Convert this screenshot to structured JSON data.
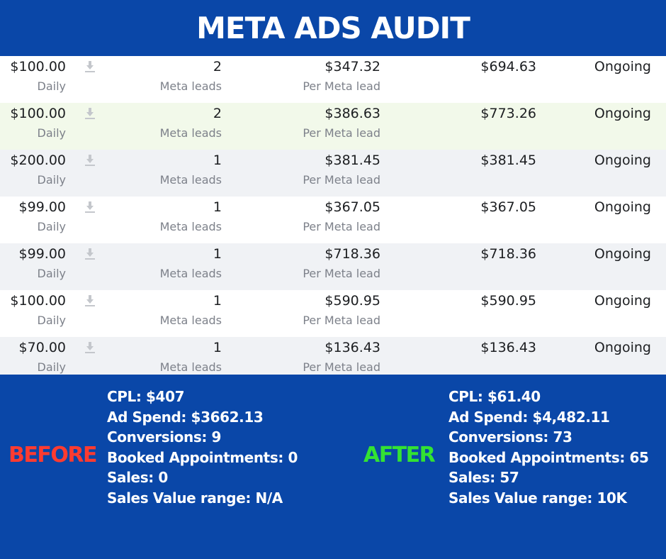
{
  "title": "META ADS AUDIT",
  "rows": [
    {
      "budget": "$100.00",
      "budget_type": "Daily",
      "results": "2",
      "results_label": "Meta leads",
      "cost": "$347.32",
      "cost_label": "Per Meta lead",
      "spent": "$694.63",
      "status": "Ongoing"
    },
    {
      "budget": "$100.00",
      "budget_type": "Daily",
      "results": "2",
      "results_label": "Meta leads",
      "cost": "$386.63",
      "cost_label": "Per Meta lead",
      "spent": "$773.26",
      "status": "Ongoing"
    },
    {
      "budget": "$200.00",
      "budget_type": "Daily",
      "results": "1",
      "results_label": "Meta leads",
      "cost": "$381.45",
      "cost_label": "Per Meta lead",
      "spent": "$381.45",
      "status": "Ongoing"
    },
    {
      "budget": "$99.00",
      "budget_type": "Daily",
      "results": "1",
      "results_label": "Meta leads",
      "cost": "$367.05",
      "cost_label": "Per Meta lead",
      "spent": "$367.05",
      "status": "Ongoing"
    },
    {
      "budget": "$99.00",
      "budget_type": "Daily",
      "results": "1",
      "results_label": "Meta leads",
      "cost": "$718.36",
      "cost_label": "Per Meta lead",
      "spent": "$718.36",
      "status": "Ongoing"
    },
    {
      "budget": "$100.00",
      "budget_type": "Daily",
      "results": "1",
      "results_label": "Meta leads",
      "cost": "$590.95",
      "cost_label": "Per Meta lead",
      "spent": "$590.95",
      "status": "Ongoing"
    },
    {
      "budget": "$70.00",
      "budget_type": "Daily",
      "results": "1",
      "results_label": "Meta leads",
      "cost": "$136.43",
      "cost_label": "Per Meta lead",
      "spent": "$136.43",
      "status": "Ongoing"
    }
  ],
  "before": {
    "label": "BEFORE",
    "stats": [
      "CPL: $407",
      "Ad Spend: $3662.13",
      "Conversions: 9",
      "Booked Appointments: 0",
      "Sales: 0",
      "Sales Value range: N/A"
    ]
  },
  "after": {
    "label": "AFTER",
    "stats": [
      "CPL: $61.40",
      "Ad Spend: $4,482.11",
      "Conversions: 73",
      "Booked Appointments: 65",
      "Sales: 57",
      "Sales Value range: 10K"
    ]
  },
  "colors": {
    "background": "#0a47a8",
    "before_label": "#ff3b30",
    "after_label": "#33e233",
    "row_highlight": "#f2f9ea"
  },
  "icons": {
    "row_icon": "download-icon"
  }
}
